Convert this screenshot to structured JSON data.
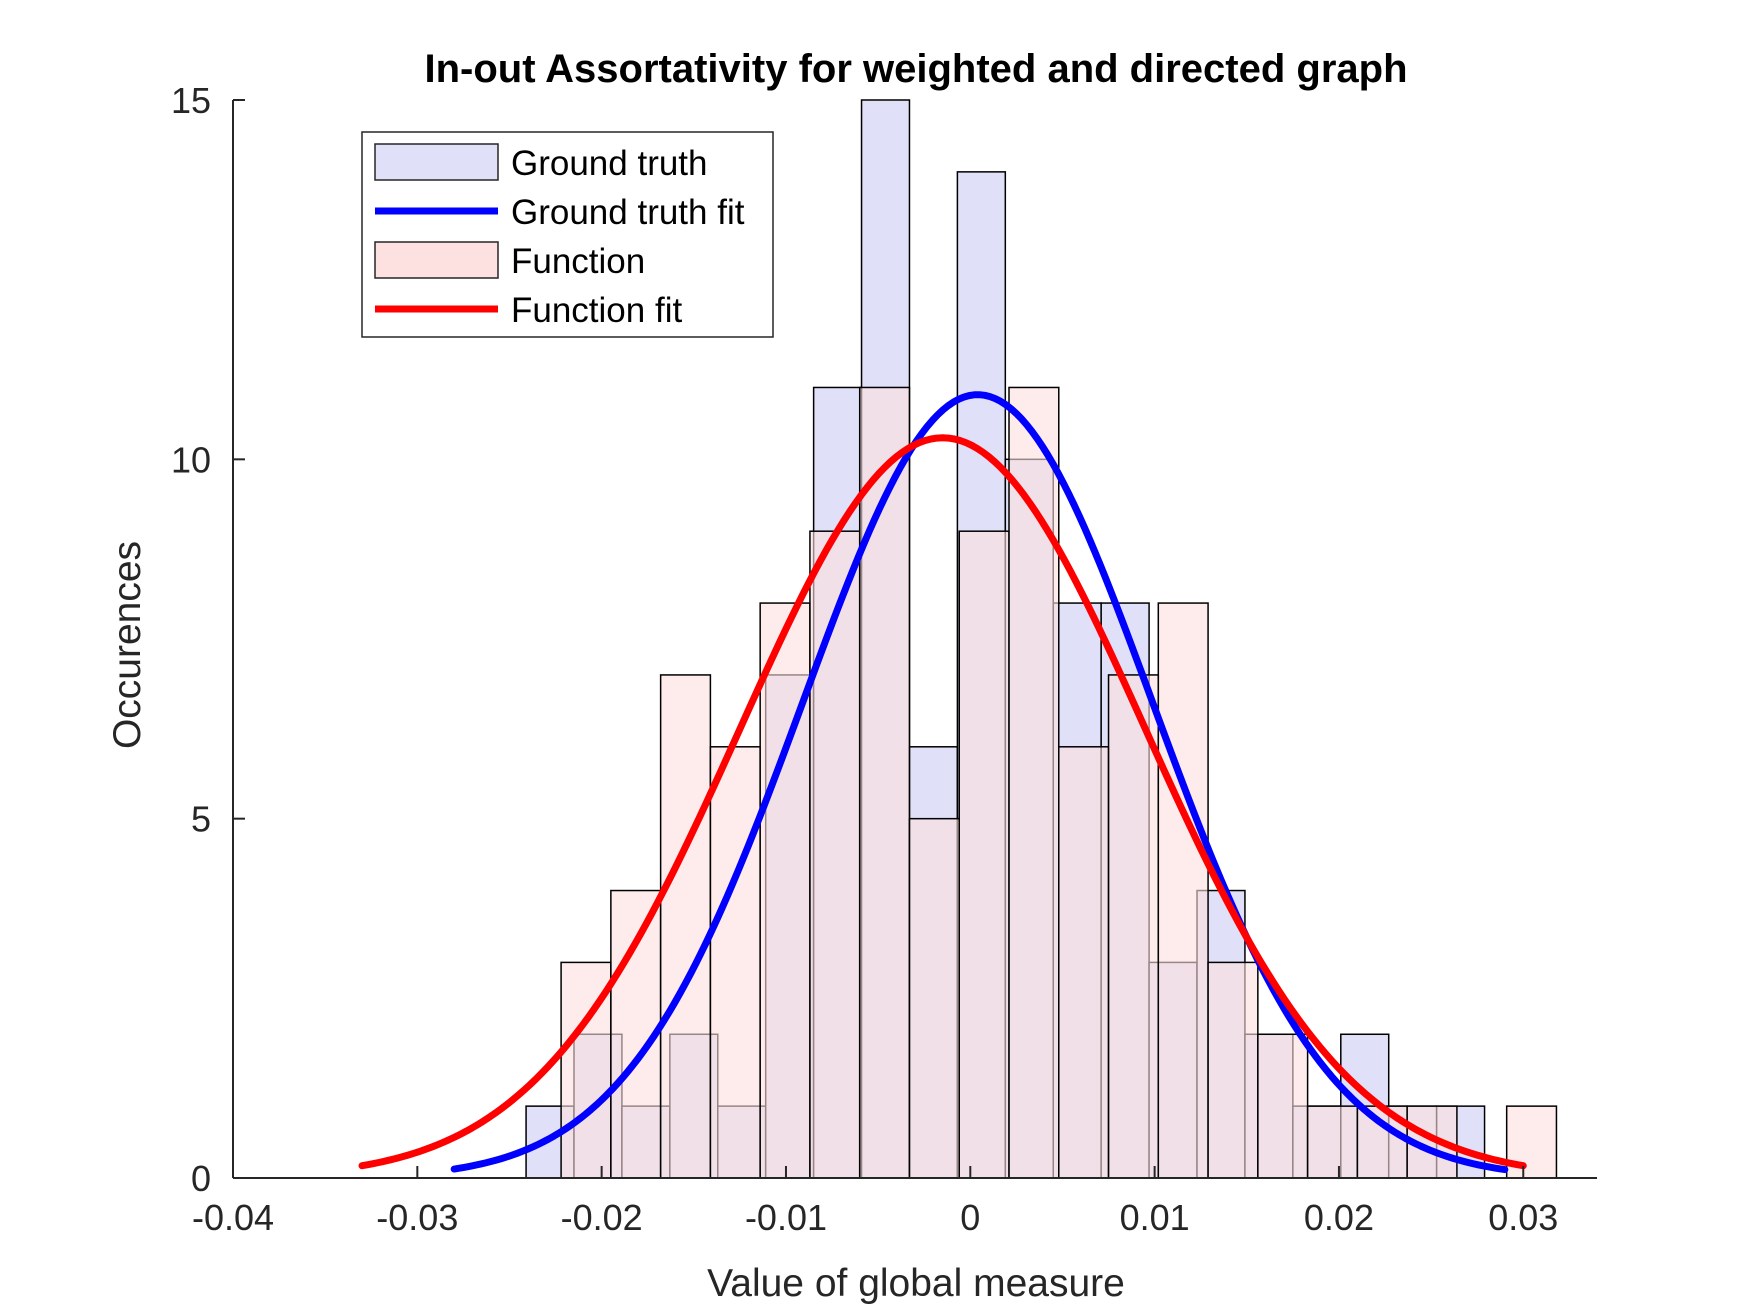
{
  "chart_data": {
    "type": "bar",
    "title": "In-out Assortativity for weighted and directed graph",
    "xlabel": "Value of global measure",
    "ylabel": "Occurences",
    "xlim": [
      -0.04,
      0.034
    ],
    "ylim": [
      0,
      15
    ],
    "xticks": [
      -0.04,
      -0.03,
      -0.02,
      -0.01,
      0,
      0.01,
      0.02,
      0.03
    ],
    "xtick_labels": [
      "-0.04",
      "-0.03",
      "-0.02",
      "-0.01",
      "0",
      "0.01",
      "0.02",
      "0.03"
    ],
    "yticks": [
      0,
      5,
      10,
      15
    ],
    "ytick_labels": [
      "0",
      "5",
      "10",
      "15"
    ],
    "grid": false,
    "legend_position": "top-left",
    "series": [
      {
        "name": "Ground truth",
        "kind": "histogram",
        "color": "#e0e0f8",
        "bin_edges": [
          -0.0241,
          -0.0215,
          -0.0189,
          -0.0163,
          -0.0137,
          -0.0111,
          -0.0085,
          -0.0059,
          -0.0033,
          -0.0007,
          0.0019,
          0.0045,
          0.0071,
          0.0097,
          0.0123,
          0.0149,
          0.0175,
          0.0201,
          0.0227,
          0.0253,
          0.0279
        ],
        "counts": [
          1,
          2,
          1,
          2,
          1,
          7,
          11,
          15,
          6,
          14,
          10,
          8,
          8,
          3,
          4,
          2,
          1,
          2,
          1,
          1
        ]
      },
      {
        "name": "Ground truth fit",
        "kind": "line",
        "color": "#0000ff",
        "mean": 0.0004,
        "std": 0.0095,
        "peak": 10.9,
        "x_range": [
          -0.028,
          0.029
        ]
      },
      {
        "name": "Function",
        "kind": "histogram",
        "color": "#fde0e0",
        "bin_edges": [
          -0.0222,
          -0.0195,
          -0.0168,
          -0.0141,
          -0.0114,
          -0.0087,
          -0.006,
          -0.0033,
          -0.0006,
          0.0021,
          0.0048,
          0.0075,
          0.0102,
          0.0129,
          0.0156,
          0.0183,
          0.021,
          0.0237,
          0.0264,
          0.0291,
          0.0318
        ],
        "counts": [
          3,
          4,
          7,
          6,
          8,
          9,
          11,
          5,
          9,
          11,
          6,
          7,
          8,
          3,
          2,
          1,
          1,
          1,
          0,
          1
        ]
      },
      {
        "name": "Function fit",
        "kind": "line",
        "color": "#ff0000",
        "mean": -0.0015,
        "std": 0.011,
        "peak": 10.3,
        "x_range": [
          -0.033,
          0.03
        ]
      }
    ]
  }
}
